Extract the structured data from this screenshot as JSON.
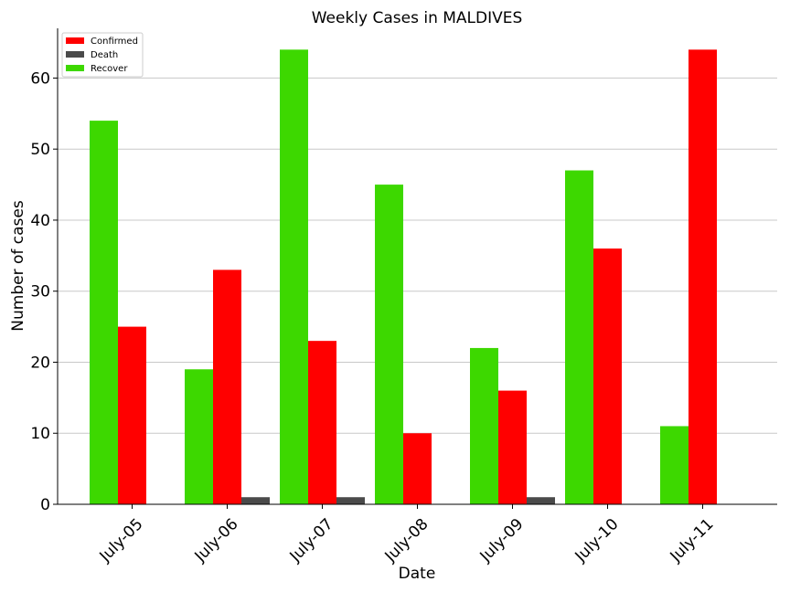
{
  "chart_data": {
    "type": "bar",
    "title": "Weekly Cases in MALDIVES",
    "xlabel": "Date",
    "ylabel": "Number of cases",
    "categories": [
      "July-05",
      "July-06",
      "July-07",
      "July-08",
      "July-09",
      "July-10",
      "July-11"
    ],
    "series": [
      {
        "name": "Recover",
        "color": "#3dd800",
        "values": [
          54,
          19,
          64,
          45,
          22,
          47,
          11
        ]
      },
      {
        "name": "Confirmed",
        "color": "#ff0000",
        "values": [
          25,
          33,
          23,
          10,
          16,
          36,
          64
        ]
      },
      {
        "name": "Death",
        "color": "#4a4a4a",
        "values": [
          0,
          1,
          1,
          0,
          1,
          0,
          0
        ]
      }
    ],
    "legend_order": [
      "Confirmed",
      "Death",
      "Recover"
    ],
    "yticks": [
      0,
      10,
      20,
      30,
      40,
      50,
      60
    ],
    "ylim": [
      0,
      67
    ],
    "grid": "horizontal",
    "legend_position": "top-left"
  }
}
